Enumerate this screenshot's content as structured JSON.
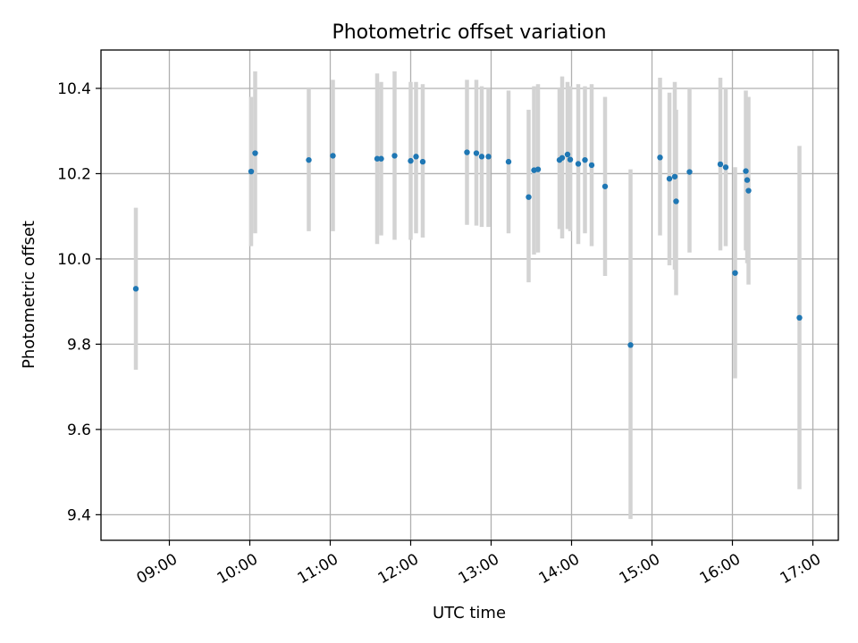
{
  "chart_data": {
    "type": "scatter",
    "title": "Photometric offset variation",
    "xlabel": "UTC time",
    "ylabel": "Photometric offset",
    "xlim": [
      "08:09",
      "17:19"
    ],
    "ylim": [
      9.34,
      10.49
    ],
    "x_ticks": [
      "09:00",
      "10:00",
      "11:00",
      "12:00",
      "13:00",
      "14:00",
      "15:00",
      "16:00",
      "17:00"
    ],
    "y_ticks": [
      9.4,
      9.6,
      9.8,
      10.0,
      10.2,
      10.4
    ],
    "y_tick_labels": [
      "9.4",
      "9.6",
      "9.8",
      "10.0",
      "10.2",
      "10.4"
    ],
    "grid": true,
    "point_color": "#1f77b4",
    "errorbar_color": "#d3d3d3",
    "points": [
      {
        "t": "08:35",
        "y": 9.93,
        "lo": 9.74,
        "hi": 10.12
      },
      {
        "t": "10:01",
        "y": 10.205,
        "lo": 10.03,
        "hi": 10.38
      },
      {
        "t": "10:04",
        "y": 10.248,
        "lo": 10.06,
        "hi": 10.44
      },
      {
        "t": "10:44",
        "y": 10.232,
        "lo": 10.065,
        "hi": 10.4
      },
      {
        "t": "11:02",
        "y": 10.242,
        "lo": 10.065,
        "hi": 10.42
      },
      {
        "t": "11:35",
        "y": 10.235,
        "lo": 10.035,
        "hi": 10.435
      },
      {
        "t": "11:38",
        "y": 10.235,
        "lo": 10.055,
        "hi": 10.415
      },
      {
        "t": "11:48",
        "y": 10.242,
        "lo": 10.045,
        "hi": 10.44
      },
      {
        "t": "12:00",
        "y": 10.23,
        "lo": 10.045,
        "hi": 10.415
      },
      {
        "t": "12:04",
        "y": 10.24,
        "lo": 10.06,
        "hi": 10.415
      },
      {
        "t": "12:09",
        "y": 10.228,
        "lo": 10.05,
        "hi": 10.41
      },
      {
        "t": "12:42",
        "y": 10.25,
        "lo": 10.08,
        "hi": 10.42
      },
      {
        "t": "12:49",
        "y": 10.248,
        "lo": 10.078,
        "hi": 10.42
      },
      {
        "t": "12:53",
        "y": 10.24,
        "lo": 10.075,
        "hi": 10.405
      },
      {
        "t": "12:58",
        "y": 10.24,
        "lo": 10.075,
        "hi": 10.4
      },
      {
        "t": "13:13",
        "y": 10.228,
        "lo": 10.06,
        "hi": 10.395
      },
      {
        "t": "13:28",
        "y": 10.145,
        "lo": 9.945,
        "hi": 10.35
      },
      {
        "t": "13:32",
        "y": 10.208,
        "lo": 10.01,
        "hi": 10.405
      },
      {
        "t": "13:35",
        "y": 10.21,
        "lo": 10.015,
        "hi": 10.41
      },
      {
        "t": "13:51",
        "y": 10.232,
        "lo": 10.07,
        "hi": 10.4
      },
      {
        "t": "13:53",
        "y": 10.237,
        "lo": 10.048,
        "hi": 10.428
      },
      {
        "t": "13:57",
        "y": 10.245,
        "lo": 10.07,
        "hi": 10.415
      },
      {
        "t": "13:59",
        "y": 10.233,
        "lo": 10.065,
        "hi": 10.405
      },
      {
        "t": "14:05",
        "y": 10.223,
        "lo": 10.035,
        "hi": 10.41
      },
      {
        "t": "14:10",
        "y": 10.232,
        "lo": 10.06,
        "hi": 10.405
      },
      {
        "t": "14:15",
        "y": 10.22,
        "lo": 10.03,
        "hi": 10.41
      },
      {
        "t": "14:25",
        "y": 10.17,
        "lo": 9.96,
        "hi": 10.38
      },
      {
        "t": "14:44",
        "y": 9.798,
        "lo": 9.39,
        "hi": 10.21
      },
      {
        "t": "15:06",
        "y": 10.238,
        "lo": 10.055,
        "hi": 10.425
      },
      {
        "t": "15:13",
        "y": 10.188,
        "lo": 9.985,
        "hi": 10.39
      },
      {
        "t": "15:17",
        "y": 10.193,
        "lo": 9.975,
        "hi": 10.415
      },
      {
        "t": "15:18",
        "y": 10.135,
        "lo": 9.915,
        "hi": 10.35
      },
      {
        "t": "15:28",
        "y": 10.204,
        "lo": 10.015,
        "hi": 10.4
      },
      {
        "t": "15:51",
        "y": 10.222,
        "lo": 10.02,
        "hi": 10.425
      },
      {
        "t": "15:55",
        "y": 10.215,
        "lo": 10.03,
        "hi": 10.4
      },
      {
        "t": "16:02",
        "y": 9.967,
        "lo": 9.72,
        "hi": 10.215
      },
      {
        "t": "16:10",
        "y": 10.206,
        "lo": 10.02,
        "hi": 10.395
      },
      {
        "t": "16:11",
        "y": 10.185,
        "lo": 9.99,
        "hi": 10.38
      },
      {
        "t": "16:12",
        "y": 10.16,
        "lo": 9.94,
        "hi": 10.38
      },
      {
        "t": "16:50",
        "y": 9.862,
        "lo": 9.46,
        "hi": 10.265
      }
    ]
  }
}
